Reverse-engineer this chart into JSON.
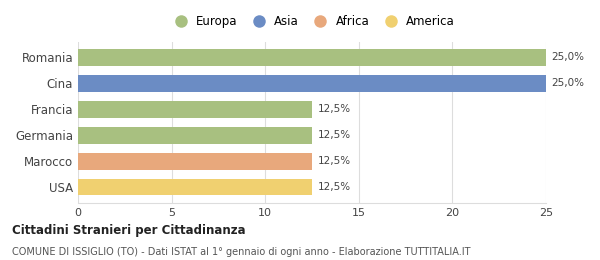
{
  "categories": [
    "Romania",
    "Cina",
    "Francia",
    "Germania",
    "Marocco",
    "USA"
  ],
  "values": [
    25.0,
    25.0,
    12.5,
    12.5,
    12.5,
    12.5
  ],
  "bar_colors": [
    "#adc eighteen",
    "#6b8cc4",
    "#a8c080",
    "#a8c080",
    "#e8a87c",
    "#f0d070"
  ],
  "bar_colors_fixed": [
    "#a8c080",
    "#6b8cc4",
    "#a8c080",
    "#a8c080",
    "#e8a87c",
    "#f0d070"
  ],
  "value_labels": [
    "25,0%",
    "25,0%",
    "12,5%",
    "12,5%",
    "12,5%",
    "12,5%"
  ],
  "xlim": [
    0,
    25
  ],
  "xticks": [
    0,
    5,
    10,
    15,
    20,
    25
  ],
  "legend_labels": [
    "Europa",
    "Asia",
    "Africa",
    "America"
  ],
  "legend_colors": [
    "#a8c080",
    "#6b8cc4",
    "#e8a87c",
    "#f0d070"
  ],
  "title_bold": "Cittadini Stranieri per Cittadinanza",
  "subtitle": "COMUNE DI ISSIGLIO (TO) - Dati ISTAT al 1° gennaio di ogni anno - Elaborazione TUTTITALIA.IT",
  "background_color": "#ffffff",
  "bar_height": 0.65,
  "grid_color": "#dddddd"
}
